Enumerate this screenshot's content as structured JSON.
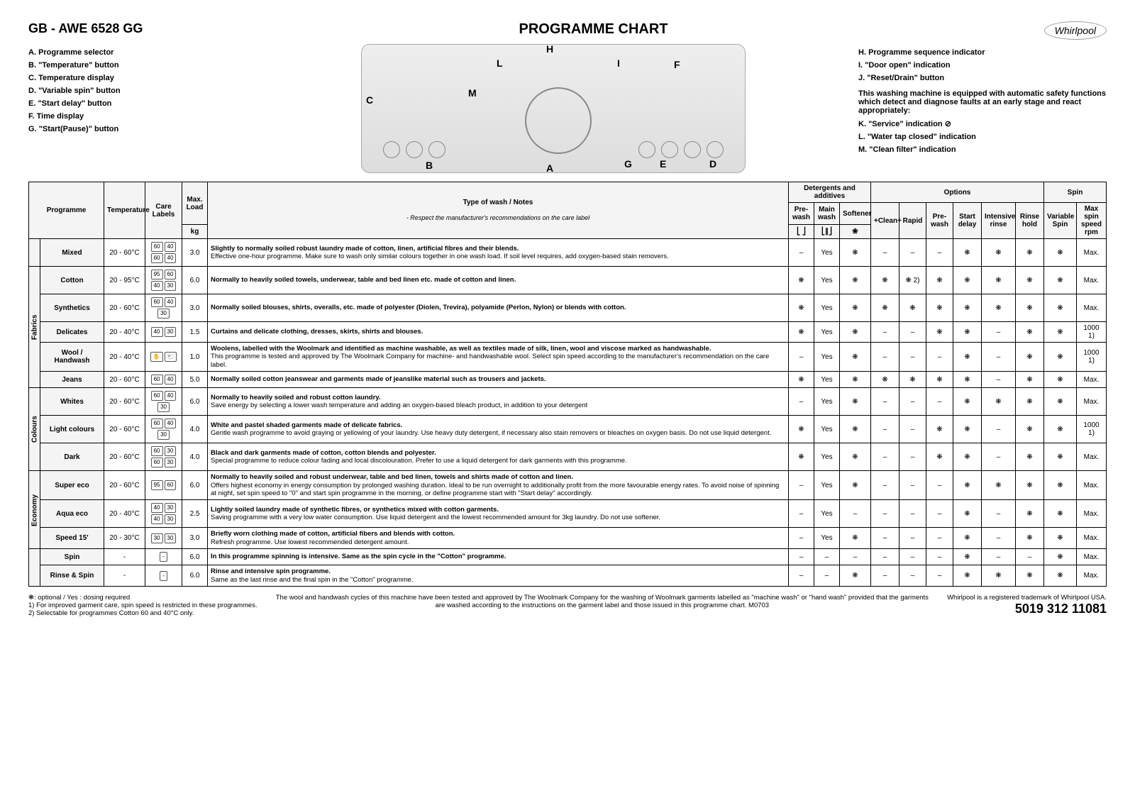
{
  "header": {
    "model": "GB - AWE 6528 GG",
    "title": "PROGRAMME CHART",
    "logo": "Whirlpool"
  },
  "legend_left": [
    {
      "k": "A.",
      "t": "Programme selector"
    },
    {
      "k": "B.",
      "t": "\"Temperature\" button"
    },
    {
      "k": "C.",
      "t": "Temperature display"
    },
    {
      "k": "D.",
      "t": "\"Variable spin\" button"
    },
    {
      "k": "E.",
      "t": "\"Start delay\" button"
    },
    {
      "k": "F.",
      "t": "Time display"
    },
    {
      "k": "G.",
      "t": "\"Start(Pause)\" button"
    }
  ],
  "legend_right": [
    {
      "k": "H.",
      "t": "Programme sequence indicator"
    },
    {
      "k": "I.",
      "t": "\"Door open\" indication"
    },
    {
      "k": "J.",
      "t": "\"Reset/Drain\" button"
    }
  ],
  "right_note": "This washing machine is equipped with automatic safety functions which detect and diagnose faults at an early stage and react appropriately:",
  "legend_right2": [
    {
      "k": "K.",
      "t": "\"Service\" indication ⊘"
    },
    {
      "k": "L.",
      "t": "\"Water tap closed\" indication"
    },
    {
      "k": "M.",
      "t": "\"Clean filter\" indication"
    }
  ],
  "panel_labels": [
    "A",
    "B",
    "C",
    "D",
    "E",
    "F",
    "G",
    "H",
    "I",
    "L",
    "M"
  ],
  "table": {
    "group_headers": {
      "programme": "Programme",
      "temp": "Temperature",
      "care": "Care Labels",
      "load": "Max. Load",
      "load_unit": "kg",
      "type": "Type of wash / Notes",
      "type_sub": "- Respect the manufacturer's recommendations on the care label",
      "det": "Detergents and additives",
      "opt": "Options",
      "spin": "Spin"
    },
    "sub_headers": {
      "pre": "Pre-wash",
      "main": "Main wash",
      "soft": "Softener",
      "clean": "+Clean+",
      "rapid": "Rapid",
      "prewash_opt": "Pre-wash",
      "sdelay": "Start delay",
      "irinse": "Intensive rinse",
      "rhold": "Rinse hold",
      "vspin": "Variable Spin",
      "mspin": "Max spin speed rpm"
    },
    "icons_row": {
      "pre": "⎣ ⎦",
      "main": "⎣∥⎦",
      "soft": "❀"
    },
    "side_groups": [
      {
        "label": "",
        "rows": [
          "Mixed"
        ]
      },
      {
        "label": "Fabrics",
        "rows": [
          "Cotton",
          "Synthetics",
          "Delicates",
          "Wool / Handwash",
          "Jeans"
        ]
      },
      {
        "label": "Colours",
        "rows": [
          "Whites",
          "Light colours",
          "Dark"
        ]
      },
      {
        "label": "Economy",
        "rows": [
          "Super eco",
          "Aqua eco",
          "Speed 15'"
        ]
      },
      {
        "label": "",
        "rows": [
          "Spin",
          "Rinse & Spin"
        ]
      }
    ],
    "rows": [
      {
        "name": "Mixed",
        "temp": "20 - 60°C",
        "care": [
          "60",
          "40",
          "60",
          "40"
        ],
        "load": "3.0",
        "notes_b": "Slightly to normally soiled robust laundry made of cotton, linen, artificial fibres and their blends.",
        "notes": "Effective one-hour programme. Make sure to wash only similar colours together in one wash load. If soil level requires, add oxygen-based stain removers.",
        "cells": [
          "–",
          "Yes",
          "❋",
          "–",
          "–",
          "–",
          "❋",
          "❋",
          "❋",
          "❋",
          "Max."
        ]
      },
      {
        "name": "Cotton",
        "temp": "20 - 95°C",
        "care": [
          "95",
          "60",
          "40",
          "30"
        ],
        "load": "6.0",
        "notes_b": "Normally to heavily soiled towels, underwear, table and bed linen etc. made of cotton and linen.",
        "notes": "",
        "cells": [
          "❋",
          "Yes",
          "❋",
          "❋",
          "❋ 2)",
          "❋",
          "❋",
          "❋",
          "❋",
          "❋",
          "Max."
        ]
      },
      {
        "name": "Synthetics",
        "temp": "20 - 60°C",
        "care": [
          "60",
          "40",
          "30"
        ],
        "load": "3.0",
        "notes_b": "Normally soiled blouses, shirts, overalls, etc. made of polyester (Diolen, Trevira), polyamide (Perlon, Nylon) or blends with cotton.",
        "notes": "",
        "cells": [
          "❋",
          "Yes",
          "❋",
          "❋",
          "❋",
          "❋",
          "❋",
          "❋",
          "❋",
          "❋",
          "Max."
        ]
      },
      {
        "name": "Delicates",
        "temp": "20 - 40°C",
        "care": [
          "40",
          "30"
        ],
        "load": "1.5",
        "notes_b": "Curtains and delicate clothing, dresses, skirts, shirts and blouses.",
        "notes": "",
        "cells": [
          "❋",
          "Yes",
          "❋",
          "–",
          "–",
          "❋",
          "❋",
          "–",
          "❋",
          "❋",
          "1000 1)"
        ]
      },
      {
        "name": "Wool / Handwash",
        "temp": "20 - 40°C",
        "care": [
          "✋",
          "🐑"
        ],
        "load": "1.0",
        "notes_b": "Woolens, labelled with the Woolmark and identified as machine washable, as well as textiles made of silk, linen, wool and viscose marked as handwashable.",
        "notes": "This programme is tested and approved by The Woolmark Company for machine- and handwashable wool. Select spin speed according to the manufacturer's recommendation on the care label.",
        "cells": [
          "–",
          "Yes",
          "❋",
          "–",
          "–",
          "–",
          "❋",
          "–",
          "❋",
          "❋",
          "1000 1)"
        ]
      },
      {
        "name": "Jeans",
        "temp": "20 - 60°C",
        "care": [
          "60",
          "40"
        ],
        "load": "5.0",
        "notes_b": "Normally soiled cotton jeanswear and garments made of jeanslike material such as trousers and jackets.",
        "notes": "",
        "cells": [
          "❋",
          "Yes",
          "❋",
          "❋",
          "❋",
          "❋",
          "❋",
          "–",
          "❋",
          "❋",
          "Max."
        ]
      },
      {
        "name": "Whites",
        "temp": "20 - 60°C",
        "care": [
          "60",
          "40",
          "30"
        ],
        "load": "6.0",
        "notes_b": "Normally to heavily soiled and robust cotton laundry.",
        "notes": "Save energy by selecting a lower wash temperature and adding an oxygen-based bleach product, in addition to your detergent",
        "cells": [
          "–",
          "Yes",
          "❋",
          "–",
          "–",
          "–",
          "❋",
          "❋",
          "❋",
          "❋",
          "Max."
        ]
      },
      {
        "name": "Light colours",
        "temp": "20 - 60°C",
        "care": [
          "60",
          "40",
          "30"
        ],
        "load": "4.0",
        "notes_b": "White and pastel shaded garments made of delicate fabrics.",
        "notes": "Gentle wash programme to avoid graying or yellowing of your laundry. Use heavy duty detergent, if necessary also stain removers or bleaches on oxygen basis. Do not use liquid detergent.",
        "cells": [
          "❋",
          "Yes",
          "❋",
          "–",
          "–",
          "❋",
          "❋",
          "–",
          "❋",
          "❋",
          "1000 1)"
        ]
      },
      {
        "name": "Dark",
        "temp": "20 - 60°C",
        "care": [
          "60",
          "30",
          "60",
          "30"
        ],
        "load": "4.0",
        "notes_b": "Black and dark garments made of cotton, cotton blends and polyester.",
        "notes": "Special programme to reduce colour fading and local discolouration. Prefer to use a liquid detergent for dark garments with this programme.",
        "cells": [
          "❋",
          "Yes",
          "❋",
          "–",
          "–",
          "❋",
          "❋",
          "–",
          "❋",
          "❋",
          "Max."
        ]
      },
      {
        "name": "Super eco",
        "temp": "20 - 60°C",
        "care": [
          "95",
          "60"
        ],
        "load": "6.0",
        "notes_b": "Normally to heavily soiled and robust underwear, table and bed linen, towels and shirts made of cotton and linen.",
        "notes": "Offers highest economy in energy consumption by prolonged washing duration. Ideal to be run overnight to additionally profit from the more favourable energy rates. To avoid noise of spinning at night, set spin speed to \"0\" and start spin programme in the morning, or define programme start with \"Start delay\" accordingly.",
        "cells": [
          "–",
          "Yes",
          "❋",
          "–",
          "–",
          "–",
          "❋",
          "❋",
          "❋",
          "❋",
          "Max."
        ]
      },
      {
        "name": "Aqua eco",
        "temp": "20 - 40°C",
        "care": [
          "40",
          "30",
          "40",
          "30"
        ],
        "load": "2.5",
        "notes_b": "Lightly soiled laundry made of synthetic fibres, or synthetics mixed with cotton garments.",
        "notes": "Saving programme with a very low water consumption. Use liquid detergent and the lowest recommended amount for 3kg laundry. Do not use softener.",
        "cells": [
          "–",
          "Yes",
          "–",
          "–",
          "–",
          "–",
          "❋",
          "–",
          "❋",
          "❋",
          "Max."
        ]
      },
      {
        "name": "Speed 15'",
        "temp": "20 - 30°C",
        "care": [
          "30",
          "30"
        ],
        "load": "3.0",
        "notes_b": "Briefly worn clothing made of cotton, artificial fibers and blends with cotton.",
        "notes": "Refresh programme. Use lowest recommended detergent amount.",
        "cells": [
          "–",
          "Yes",
          "❋",
          "–",
          "–",
          "–",
          "❋",
          "–",
          "❋",
          "❋",
          "Max."
        ]
      },
      {
        "name": "Spin",
        "temp": "-",
        "care": [
          "-"
        ],
        "load": "6.0",
        "notes_b": "In this programme spinning is intensive. Same as the spin cycle in the \"Cotton\" programme.",
        "notes": "",
        "cells": [
          "–",
          "–",
          "–",
          "–",
          "–",
          "–",
          "❋",
          "–",
          "–",
          "❋",
          "Max."
        ]
      },
      {
        "name": "Rinse & Spin",
        "temp": "-",
        "care": [
          "-"
        ],
        "load": "6.0",
        "notes_b": "Rinse and intensive spin programme.",
        "notes": "Same as the last rinse and the final spin in the \"Cotton\" programme.",
        "cells": [
          "–",
          "–",
          "❋",
          "–",
          "–",
          "–",
          "❋",
          "❋",
          "❋",
          "❋",
          "Max."
        ]
      }
    ]
  },
  "footer": {
    "left": [
      "❋: optional / Yes : dosing required",
      "1) For improved garment care, spin speed is restricted in these programmes.",
      "2) Selectable for programmes Cotton 60 and 40°C only."
    ],
    "center": "The wool and handwash cycles of this machine have been tested and approved by The Woolmark Company for the washing of Woolmark garments labelled as \"machine wash\" or \"hand wash\" provided that the garments are washed according to the instructions on the garment label and those issued in this programme chart. M0703",
    "right_line": "Whirlpool is a registered trademark of Whirlpool USA.",
    "partno": "5019 312 11081"
  }
}
